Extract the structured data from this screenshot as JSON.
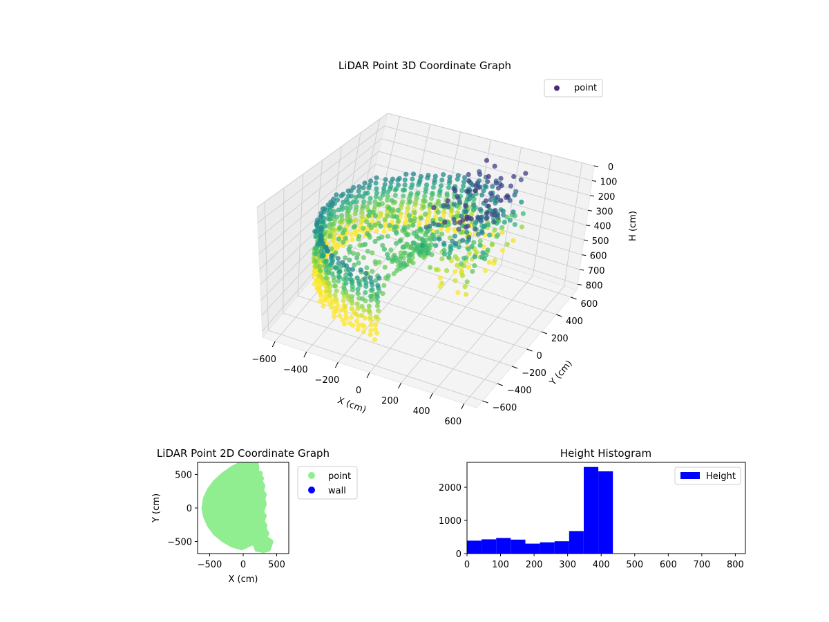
{
  "chart_data": [
    {
      "type": "scatter",
      "projection": "3d",
      "title": "LiDAR Point 3D Coordinate Graph",
      "xlabel": "X (cm)",
      "ylabel": "Y (cm)",
      "zlabel": "H (cm)",
      "xlim": [
        -680,
        680
      ],
      "ylim": [
        -680,
        680
      ],
      "zlim": [
        840,
        0
      ],
      "xticks": [
        -600,
        -400,
        -200,
        0,
        200,
        400,
        600
      ],
      "yticks": [
        -600,
        -400,
        -200,
        0,
        200,
        400,
        600
      ],
      "zticks": [
        0,
        100,
        200,
        300,
        400,
        500,
        600,
        700,
        800
      ],
      "legend": {
        "placement": "upper right",
        "entries": [
          "point"
        ]
      },
      "colormap": "viridis",
      "color_by": "height",
      "grid": true,
      "series": [
        {
          "name": "point",
          "color": "#472c7a",
          "description": "half-cylinder shell of points, radius ~620 cm, x from about -620 to 0, heights about 250 to 650, plus a dense low-height cluster near x 0 to 350"
        }
      ]
    },
    {
      "type": "scatter",
      "title": "LiDAR Point 2D Coordinate Graph",
      "xlabel": "X (cm)",
      "ylabel": "Y (cm)",
      "xlim": [
        -680,
        680
      ],
      "ylim": [
        -680,
        680
      ],
      "xticks": [
        -500,
        0,
        500
      ],
      "yticks": [
        -500,
        0,
        500
      ],
      "legend": {
        "placement": "outside right",
        "entries": [
          "point",
          "wall"
        ]
      },
      "series": [
        {
          "name": "point",
          "color": "#90ee90",
          "outline": [
            [
              -40,
              660
            ],
            [
              80,
              660
            ],
            [
              200,
              660
            ],
            [
              210,
              600
            ],
            [
              200,
              540
            ],
            [
              260,
              520
            ],
            [
              250,
              480
            ],
            [
              280,
              440
            ],
            [
              260,
              400
            ],
            [
              300,
              330
            ],
            [
              280,
              260
            ],
            [
              320,
              200
            ],
            [
              300,
              140
            ],
            [
              320,
              60
            ],
            [
              300,
              0
            ],
            [
              280,
              -60
            ],
            [
              320,
              -120
            ],
            [
              290,
              -200
            ],
            [
              330,
              -260
            ],
            [
              320,
              -320
            ],
            [
              360,
              -380
            ],
            [
              330,
              -440
            ],
            [
              420,
              -500
            ],
            [
              400,
              -560
            ],
            [
              380,
              -620
            ],
            [
              300,
              -640
            ],
            [
              200,
              -620
            ],
            [
              180,
              -560
            ],
            [
              150,
              -520
            ],
            [
              -20,
              -600
            ],
            [
              -160,
              -560
            ],
            [
              -300,
              -480
            ],
            [
              -420,
              -380
            ],
            [
              -510,
              -260
            ],
            [
              -570,
              -120
            ],
            [
              -590,
              0
            ],
            [
              -570,
              140
            ],
            [
              -510,
              270
            ],
            [
              -420,
              390
            ],
            [
              -300,
              500
            ],
            [
              -160,
              600
            ]
          ]
        },
        {
          "name": "wall",
          "color": "#0000ff",
          "values": []
        }
      ]
    },
    {
      "type": "bar",
      "title": "Height Histogram",
      "xlabel": "",
      "ylabel": "",
      "xlim": [
        0,
        830
      ],
      "ylim": [
        0,
        2750
      ],
      "xticks": [
        0,
        100,
        200,
        300,
        400,
        500,
        600,
        700,
        800
      ],
      "yticks": [
        0,
        1000,
        2000
      ],
      "legend": {
        "placement": "upper right",
        "entries": [
          "Height"
        ]
      },
      "series": [
        {
          "name": "Height",
          "color": "#0000ff",
          "bin_edges": [
            0,
            43.5,
            87,
            130.5,
            174,
            217.5,
            261,
            304.5,
            348,
            391.5,
            435
          ],
          "values": [
            390,
            430,
            470,
            420,
            300,
            340,
            370,
            680,
            2610,
            2480
          ]
        }
      ]
    }
  ]
}
